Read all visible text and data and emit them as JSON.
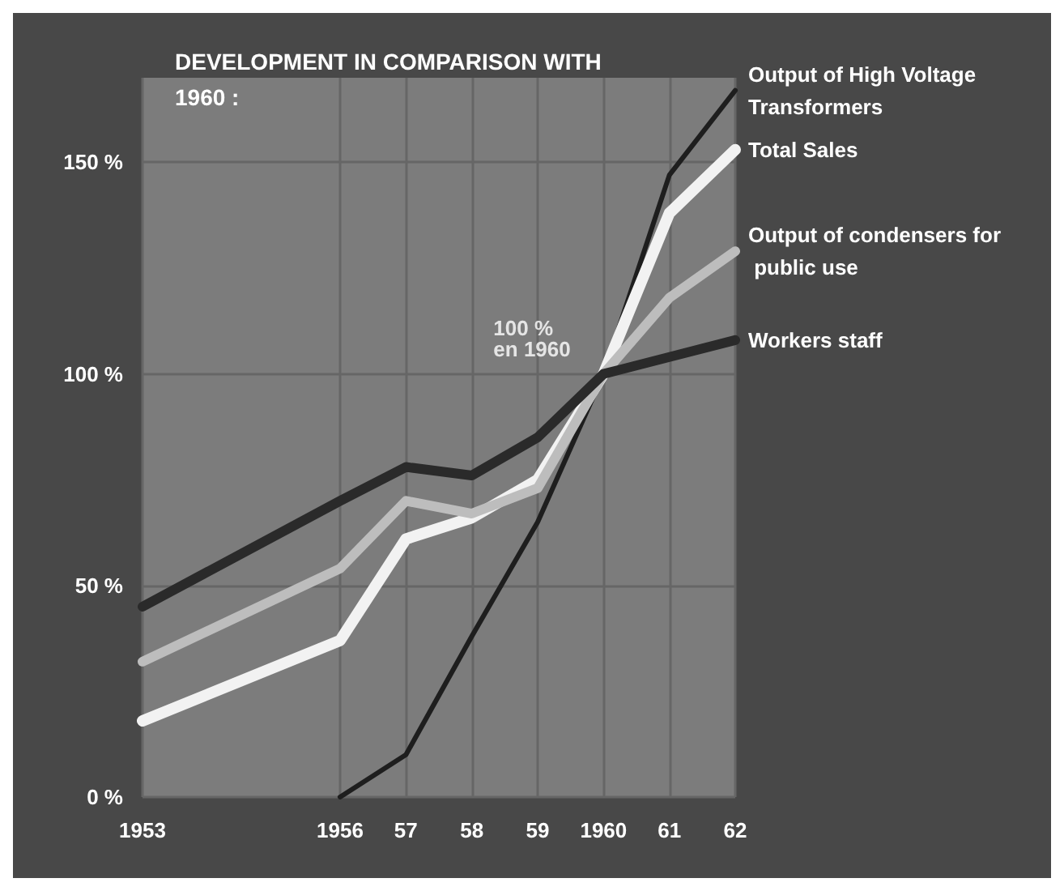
{
  "chart_data": {
    "type": "line",
    "title": "DEVELOPMENT IN COMPARISON WITH 1960 :",
    "x": [
      1953,
      1956,
      1957,
      1958,
      1959,
      1960,
      1961,
      1962
    ],
    "xlim": [
      1953,
      1962
    ],
    "xticks": [
      1953,
      1956,
      {
        "value": 1957,
        "label": "57"
      },
      {
        "value": 1958,
        "label": "58"
      },
      {
        "value": 1959,
        "label": "59"
      },
      1960,
      {
        "value": 1961,
        "label": "61"
      },
      {
        "value": 1962,
        "label": "62"
      }
    ],
    "ylim": [
      0,
      170
    ],
    "yticks": [
      {
        "value": 0,
        "label": "0 %"
      },
      {
        "value": 50,
        "label": "50 %"
      },
      {
        "value": 100,
        "label": "100 %"
      },
      {
        "value": 150,
        "label": "150 %"
      }
    ],
    "grid": true,
    "marker": "none",
    "line_style": "solid",
    "series": [
      {
        "name": "Output of High Voltage Transformers",
        "color": "#1e1e1e",
        "values": [
          null,
          0,
          10,
          38,
          65,
          100,
          147,
          167
        ]
      },
      {
        "name": "Total Sales",
        "color": "#f2f2f2",
        "values": [
          18,
          37,
          61,
          66,
          75,
          100,
          138,
          153
        ]
      },
      {
        "name": "Output of condensers for public use",
        "color": "#bdbdbd",
        "values": [
          32,
          54,
          70,
          67,
          73,
          100,
          118,
          129
        ]
      },
      {
        "name": "Workers staff",
        "color": "#2a2a2a",
        "values": [
          45,
          70,
          78,
          76,
          85,
          100,
          104,
          108
        ]
      }
    ],
    "annotations": [
      {
        "text": "100 %\nen 1960",
        "x": 1960,
        "y": 100
      }
    ]
  }
}
